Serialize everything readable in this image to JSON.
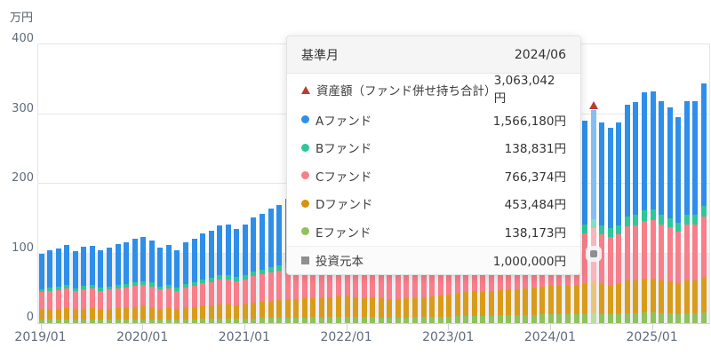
{
  "chart": {
    "unit_label": "万円",
    "y_ticks": [
      0,
      100,
      200,
      300,
      400
    ],
    "x_tick_labels": [
      "2019/01",
      "2020/01",
      "2021/01",
      "2022/01",
      "2023/01",
      "2024/01",
      "2025/01"
    ],
    "colors": {
      "fund_a": "#2e8feb",
      "fund_b": "#2ec79a",
      "fund_c": "#f87e89",
      "fund_d": "#d99c1a",
      "fund_e": "#8fc15c",
      "principal_band": "#edeff4",
      "asset_marker_red": "#bf3a32",
      "principal_marker_gray": "#8f8f8f"
    }
  },
  "chart_data": {
    "type": "bar",
    "stacked": true,
    "title": "",
    "ylabel": "万円",
    "ylim": [
      0,
      400
    ],
    "grid": true,
    "x_start": "2019/01",
    "x_interval": "month",
    "x_year_tick_indices": [
      0,
      12,
      24,
      36,
      48,
      60,
      72
    ],
    "series_order_bottom_to_top": [
      "Eファンド",
      "Dファンド",
      "Cファンド",
      "Bファンド",
      "Aファンド"
    ],
    "segment_fractions_bottom_to_top": {
      "E": 0.0451,
      "D": 0.148,
      "C": 0.2502,
      "B": 0.0453
    },
    "totals_man_yen": [
      100,
      104,
      107,
      112,
      103,
      109,
      111,
      105,
      108,
      113,
      116,
      121,
      123,
      119,
      108,
      112,
      104,
      116,
      121,
      129,
      133,
      140,
      142,
      135,
      142,
      152,
      157,
      164,
      169,
      178,
      180,
      183,
      187,
      184,
      190,
      195,
      198,
      192,
      186,
      190,
      184,
      179,
      175,
      182,
      188,
      193,
      199,
      205,
      212,
      220,
      228,
      235,
      230,
      238,
      246,
      254,
      250,
      258,
      266,
      272,
      278,
      285,
      280,
      282,
      290,
      306.3,
      288,
      280,
      288,
      314,
      317,
      331,
      333,
      319,
      309,
      295,
      319,
      318,
      344
    ],
    "principal_series": {
      "name": "投資元本",
      "value_man_yen": 100,
      "style": "gray-area-band"
    },
    "highlight_index": 65,
    "hover_point": {
      "month": "2024/06",
      "values_yen": {
        "資産額（ファンド併せ持ち合計）": 3063042,
        "Aファンド": 1566180,
        "Bファンド": 138831,
        "Cファンド": 766374,
        "Dファンド": 453484,
        "Eファンド": 138173,
        "投資元本": 1000000
      }
    }
  },
  "tooltip": {
    "header_label": "基準月",
    "header_value": "2024/06",
    "rows": [
      {
        "marker": "triangle",
        "color": "#bf3a32",
        "label": "資産額（ファンド併せ持ち合計）",
        "value": "3,063,042円"
      },
      {
        "marker": "circle",
        "color": "#2e8feb",
        "label": "Aファンド",
        "value": "1,566,180円"
      },
      {
        "marker": "circle",
        "color": "#2ec79a",
        "label": "Bファンド",
        "value": "138,831円"
      },
      {
        "marker": "circle",
        "color": "#f87e89",
        "label": "Cファンド",
        "value": "766,374円"
      },
      {
        "marker": "circle",
        "color": "#d5920b",
        "label": "Dファンド",
        "value": "453,484円"
      },
      {
        "marker": "circle",
        "color": "#8fc15c",
        "label": "Eファンド",
        "value": "138,173円"
      },
      {
        "marker": "square",
        "color": "#8f8f8f",
        "label": "投資元本",
        "value": "1,000,000円"
      }
    ]
  }
}
